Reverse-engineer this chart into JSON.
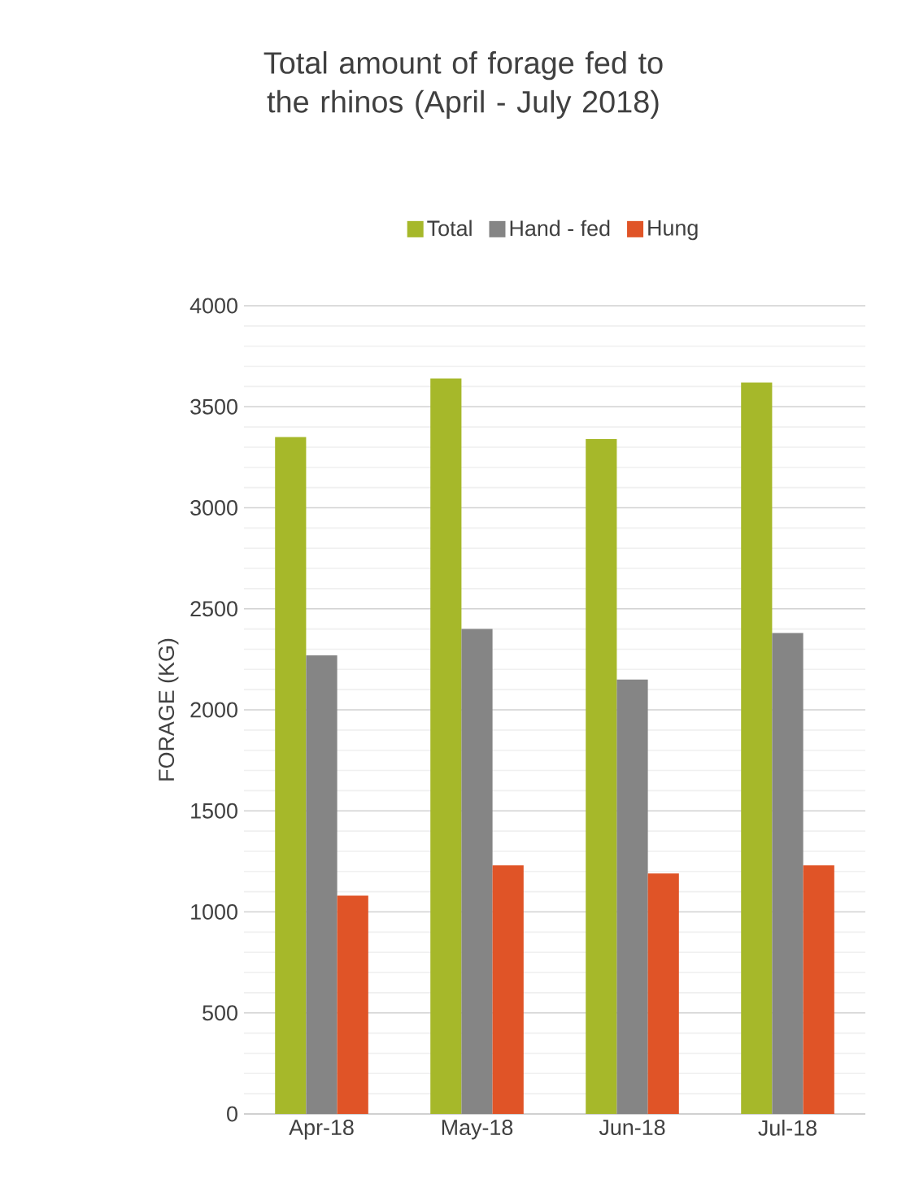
{
  "chart_data": {
    "type": "bar",
    "title": "Total amount of forage fed to the rhinos (April - July 2018)",
    "ylabel": "FORAGE (KG)",
    "categories": [
      "Apr-18",
      "May-18",
      "Jun-18",
      "Jul-18"
    ],
    "series": [
      {
        "name": "Total",
        "color": "#a6b82a",
        "values": [
          3350,
          3640,
          3340,
          3620
        ]
      },
      {
        "name": "Hand - fed",
        "color": "#858585",
        "values": [
          2270,
          2400,
          2150,
          2380
        ]
      },
      {
        "name": "Hung",
        "color": "#e05427",
        "values": [
          1080,
          1230,
          1190,
          1230
        ]
      }
    ],
    "ylim": [
      0,
      4000
    ],
    "yticks": [
      0,
      500,
      1000,
      1500,
      2000,
      2500,
      3000,
      3500,
      4000
    ],
    "grid": "y",
    "legend": "top"
  }
}
